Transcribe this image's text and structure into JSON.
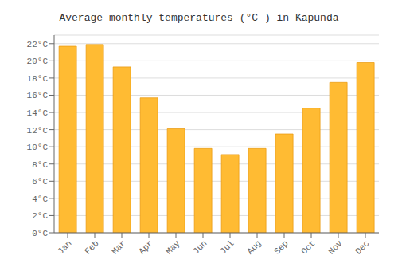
{
  "chart_data": {
    "type": "bar",
    "title": "Average monthly temperatures (°C ) in Kapunda",
    "categories": [
      "Jan",
      "Feb",
      "Mar",
      "Apr",
      "May",
      "Jun",
      "Jul",
      "Aug",
      "Sep",
      "Oct",
      "Nov",
      "Dec"
    ],
    "values": [
      21.7,
      21.9,
      19.3,
      15.7,
      12.1,
      9.8,
      9.1,
      9.8,
      11.5,
      14.5,
      17.5,
      19.8
    ],
    "color": "#FFBB33",
    "ylim": [
      0,
      23
    ],
    "yticks": [
      {
        "value": 0,
        "label": "0°C"
      },
      {
        "value": 2,
        "label": "2°C"
      },
      {
        "value": 4,
        "label": "4°C"
      },
      {
        "value": 6,
        "label": "6°C"
      },
      {
        "value": 8,
        "label": "8°C"
      },
      {
        "value": 10,
        "label": "10°C"
      },
      {
        "value": 12,
        "label": "12°C"
      },
      {
        "value": 14,
        "label": "14°C"
      },
      {
        "value": 16,
        "label": "16°C"
      },
      {
        "value": 18,
        "label": "18°C"
      },
      {
        "value": 20,
        "label": "20°C"
      },
      {
        "value": 22,
        "label": "22°C"
      }
    ],
    "grid": true
  }
}
